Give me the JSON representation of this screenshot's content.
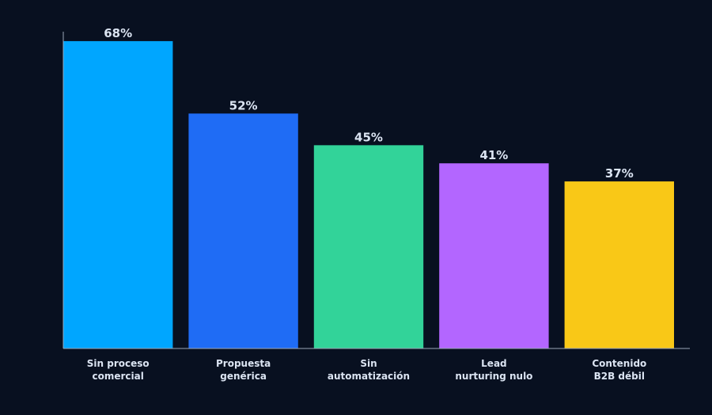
{
  "chart_data": {
    "type": "bar",
    "categories": [
      [
        "Sin proceso",
        "comercial"
      ],
      [
        "Propuesta",
        "genérica"
      ],
      [
        "Sin",
        "automatización"
      ],
      [
        "Lead",
        "nurturing nulo"
      ],
      [
        "Contenido",
        "B2B débil"
      ]
    ],
    "values": [
      68,
      52,
      45,
      41,
      37
    ],
    "value_labels": [
      "68%",
      "52%",
      "45%",
      "41%",
      "37%"
    ],
    "colors": [
      "#00a6ff",
      "#1f6cf5",
      "#32d399",
      "#b366ff",
      "#f9c817"
    ],
    "ylim": [
      0,
      70
    ],
    "grid": false,
    "title": "",
    "xlabel": "",
    "ylabel": ""
  },
  "colors": {
    "background": "#081020",
    "axis": "#9aa6b8",
    "text": "#dbe4f2"
  }
}
